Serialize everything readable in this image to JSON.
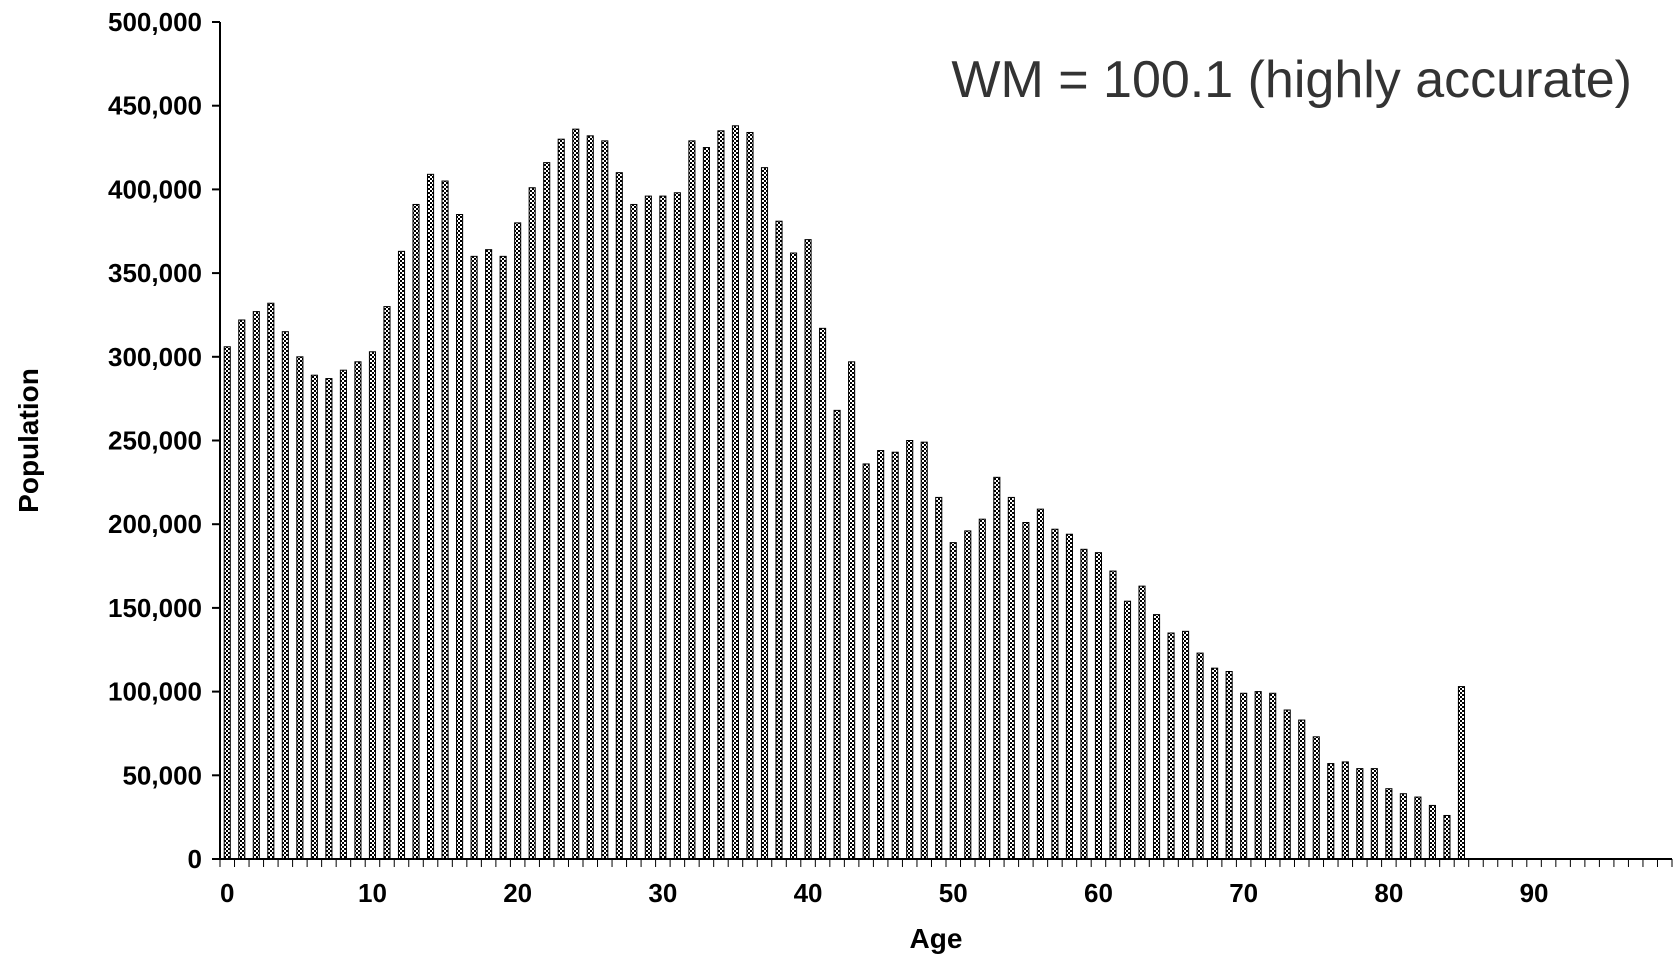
{
  "chart_data": {
    "type": "bar",
    "title": "",
    "xlabel": "Age",
    "ylabel": "Population",
    "annotation": "WM = 100.1 (highly accurate)",
    "ylim": [
      0,
      500000
    ],
    "xlim": [
      0,
      99
    ],
    "y_ticks": [
      0,
      50000,
      100000,
      150000,
      200000,
      250000,
      300000,
      350000,
      400000,
      450000,
      500000
    ],
    "y_tick_labels": [
      "0",
      "50,000",
      "100,000",
      "150,000",
      "200,000",
      "250,000",
      "300,000",
      "350,000",
      "400,000",
      "450,000",
      "500,000"
    ],
    "x_tick_labels": [
      "0",
      "10",
      "20",
      "30",
      "40",
      "50",
      "60",
      "70",
      "80",
      "90"
    ],
    "grid": false,
    "legend": "none",
    "bar_color": "#000000",
    "bar_pattern": "checkered",
    "x": [
      0,
      1,
      2,
      3,
      4,
      5,
      6,
      7,
      8,
      9,
      10,
      11,
      12,
      13,
      14,
      15,
      16,
      17,
      18,
      19,
      20,
      21,
      22,
      23,
      24,
      25,
      26,
      27,
      28,
      29,
      30,
      31,
      32,
      33,
      34,
      35,
      36,
      37,
      38,
      39,
      40,
      41,
      42,
      43,
      44,
      45,
      46,
      47,
      48,
      49,
      50,
      51,
      52,
      53,
      54,
      55,
      56,
      57,
      58,
      59,
      60,
      61,
      62,
      63,
      64,
      65,
      66,
      67,
      68,
      69,
      70,
      71,
      72,
      73,
      74,
      75,
      76,
      77,
      78,
      79,
      80,
      81,
      82,
      83,
      84,
      85
    ],
    "values": [
      306000,
      322000,
      327000,
      332000,
      315000,
      300000,
      289000,
      287000,
      292000,
      297000,
      303000,
      330000,
      363000,
      391000,
      409000,
      405000,
      385000,
      360000,
      364000,
      360000,
      380000,
      401000,
      416000,
      430000,
      436000,
      432000,
      429000,
      410000,
      391000,
      396000,
      396000,
      398000,
      429000,
      425000,
      435000,
      438000,
      434000,
      413000,
      381000,
      362000,
      370000,
      317000,
      268000,
      297000,
      236000,
      244000,
      243000,
      250000,
      249000,
      216000,
      189000,
      196000,
      203000,
      228000,
      216000,
      201000,
      209000,
      197000,
      194000,
      185000,
      183000,
      172000,
      154000,
      163000,
      146000,
      135000,
      136000,
      123000,
      114000,
      112000,
      99000,
      100000,
      99000,
      89000,
      83000,
      73000,
      57000,
      58000,
      54000,
      54000,
      42000,
      39000,
      37000,
      32000,
      26000,
      103000
    ]
  }
}
